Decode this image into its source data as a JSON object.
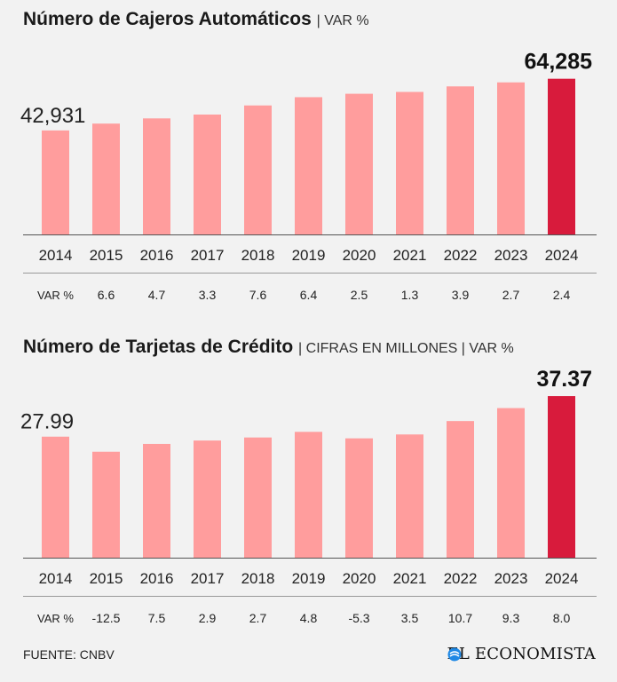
{
  "charts": [
    {
      "title": "Número de Cajeros Automáticos",
      "subtitle": "| VAR %",
      "first_label": "42,931",
      "last_label": "64,285",
      "var_label": "VAR %",
      "var_values": [
        "6.6",
        "4.7",
        "3.3",
        "7.6",
        "6.4",
        "2.5",
        "1.3",
        "3.9",
        "2.7",
        "2.4"
      ]
    },
    {
      "title": "Número de Tarjetas de Crédito",
      "subtitle": "| CIFRAS EN MILLONES | VAR %",
      "first_label": "27.99",
      "last_label": "37.37",
      "var_label": "VAR %",
      "var_values": [
        "-12.5",
        "7.5",
        "2.9",
        "2.7",
        "4.8",
        "-5.3",
        "3.5",
        "10.7",
        "9.3",
        "8.0"
      ]
    }
  ],
  "chart_data": [
    {
      "type": "bar",
      "title": "Número de Cajeros Automáticos",
      "categories": [
        "2014",
        "2015",
        "2016",
        "2017",
        "2018",
        "2019",
        "2020",
        "2021",
        "2022",
        "2023",
        "2024"
      ],
      "values": [
        42931,
        45765,
        47916,
        49497,
        53259,
        56668,
        58085,
        58840,
        61135,
        62786,
        64285
      ],
      "ylim": [
        0,
        66000
      ],
      "grid": false,
      "colors": {
        "bar": "#ff9d9d",
        "highlight": "#d81b3c"
      }
    },
    {
      "type": "bar",
      "title": "Número de Tarjetas de Crédito",
      "categories": [
        "2014",
        "2015",
        "2016",
        "2017",
        "2018",
        "2019",
        "2020",
        "2021",
        "2022",
        "2023",
        "2024"
      ],
      "values": [
        27.99,
        24.5,
        26.3,
        27.1,
        27.8,
        29.1,
        27.6,
        28.5,
        31.6,
        34.6,
        37.37
      ],
      "ylim": [
        0,
        38
      ],
      "grid": false,
      "colors": {
        "bar": "#ff9d9d",
        "highlight": "#d81b3c"
      }
    }
  ],
  "footer": {
    "source": "FUENTE: CNBV",
    "logo": "EL ECONOMISTA",
    "logo_color": "#1e88e5"
  }
}
